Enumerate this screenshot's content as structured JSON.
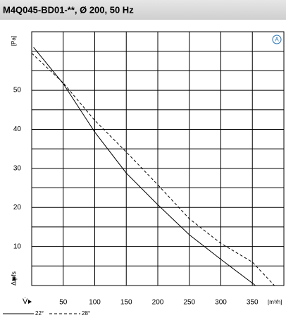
{
  "chart_data": {
    "type": "line",
    "title": "M4Q045-BD01-**, Ø 200, 50 Hz",
    "x_label": "V̇",
    "x_unit": "[m³/h]",
    "y_label": "Δ pfs",
    "y_unit": "[Pa]",
    "annotation": "A",
    "xlim": [
      0,
      400
    ],
    "xticks": [
      50,
      100,
      150,
      200,
      250,
      300,
      350
    ],
    "ylim": [
      0,
      65
    ],
    "yticks": [
      10,
      20,
      30,
      40,
      50
    ],
    "y_minor_ticks": [
      5,
      15,
      25,
      35,
      45,
      55,
      60
    ],
    "grid": true,
    "series": [
      {
        "name": "22°",
        "color": "#000000",
        "dash": false,
        "x": [
          3,
          50,
          100,
          150,
          200,
          250,
          300,
          355
        ],
        "values": [
          61,
          51.7,
          39.3,
          28.8,
          20.7,
          13,
          6.7,
          0
        ]
      },
      {
        "name": "28°",
        "color": "#000000",
        "dash": true,
        "x": [
          0,
          50,
          100,
          150,
          200,
          250,
          300,
          350,
          385
        ],
        "values": [
          59.5,
          51.9,
          42.3,
          34.2,
          25.8,
          17.1,
          10.8,
          6,
          0
        ]
      }
    ]
  }
}
